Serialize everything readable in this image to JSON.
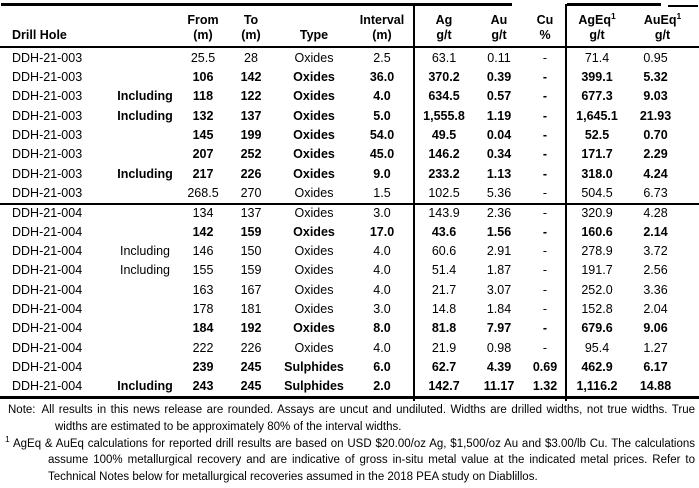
{
  "table": {
    "columns": {
      "drill_hole": "Drill Hole",
      "from": {
        "l1": "From",
        "l2": "(m)"
      },
      "to": {
        "l1": "To",
        "l2": "(m)"
      },
      "type": "Type",
      "interval": {
        "l1": "Interval",
        "l2": "(m)"
      },
      "ag": {
        "l1": "Ag",
        "l2": "g/t"
      },
      "au": {
        "l1": "Au",
        "l2": "g/t"
      },
      "cu": {
        "l1": "Cu",
        "l2": "%"
      },
      "ageq": {
        "l1": "AgEq",
        "sup": "1",
        "l2": "g/t"
      },
      "aueq": {
        "l1": "AuEq",
        "sup": "1",
        "l2": "g/t"
      }
    },
    "rows": [
      {
        "hole": "DDH-21-003",
        "qualifier": "",
        "from": "25.5",
        "to": "28",
        "type": "Oxides",
        "interval": "2.5",
        "ag": "63.1",
        "au": "0.11",
        "cu": "-",
        "ageq": "71.4",
        "aueq": "0.95",
        "bold": false,
        "section_start": false
      },
      {
        "hole": "DDH-21-003",
        "qualifier": "",
        "from": "106",
        "to": "142",
        "type": "Oxides",
        "interval": "36.0",
        "ag": "370.2",
        "au": "0.39",
        "cu": "-",
        "ageq": "399.1",
        "aueq": "5.32",
        "bold": true,
        "section_start": false
      },
      {
        "hole": "DDH-21-003",
        "qualifier": "Including",
        "from": "118",
        "to": "122",
        "type": "Oxides",
        "interval": "4.0",
        "ag": "634.5",
        "au": "0.57",
        "cu": "-",
        "ageq": "677.3",
        "aueq": "9.03",
        "bold": true,
        "section_start": false
      },
      {
        "hole": "DDH-21-003",
        "qualifier": "Including",
        "from": "132",
        "to": "137",
        "type": "Oxides",
        "interval": "5.0",
        "ag": "1,555.8",
        "au": "1.19",
        "cu": "-",
        "ageq": "1,645.1",
        "aueq": "21.93",
        "bold": true,
        "section_start": false
      },
      {
        "hole": "DDH-21-003",
        "qualifier": "",
        "from": "145",
        "to": "199",
        "type": "Oxides",
        "interval": "54.0",
        "ag": "49.5",
        "au": "0.04",
        "cu": "-",
        "ageq": "52.5",
        "aueq": "0.70",
        "bold": true,
        "section_start": false
      },
      {
        "hole": "DDH-21-003",
        "qualifier": "",
        "from": "207",
        "to": "252",
        "type": "Oxides",
        "interval": "45.0",
        "ag": "146.2",
        "au": "0.34",
        "cu": "-",
        "ageq": "171.7",
        "aueq": "2.29",
        "bold": true,
        "section_start": false
      },
      {
        "hole": "DDH-21-003",
        "qualifier": "Including",
        "from": "217",
        "to": "226",
        "type": "Oxides",
        "interval": "9.0",
        "ag": "233.2",
        "au": "1.13",
        "cu": "-",
        "ageq": "318.0",
        "aueq": "4.24",
        "bold": true,
        "section_start": false
      },
      {
        "hole": "DDH-21-003",
        "qualifier": "",
        "from": "268.5",
        "to": "270",
        "type": "Oxides",
        "interval": "1.5",
        "ag": "102.5",
        "au": "5.36",
        "cu": "-",
        "ageq": "504.5",
        "aueq": "6.73",
        "bold": false,
        "section_start": false
      },
      {
        "hole": "DDH-21-004",
        "qualifier": "",
        "from": "134",
        "to": "137",
        "type": "Oxides",
        "interval": "3.0",
        "ag": "143.9",
        "au": "2.36",
        "cu": "-",
        "ageq": "320.9",
        "aueq": "4.28",
        "bold": false,
        "section_start": true
      },
      {
        "hole": "DDH-21-004",
        "qualifier": "",
        "from": "142",
        "to": "159",
        "type": "Oxides",
        "interval": "17.0",
        "ag": "43.6",
        "au": "1.56",
        "cu": "-",
        "ageq": "160.6",
        "aueq": "2.14",
        "bold": true,
        "section_start": false
      },
      {
        "hole": "DDH-21-004",
        "qualifier": "Including",
        "from": "146",
        "to": "150",
        "type": "Oxides",
        "interval": "4.0",
        "ag": "60.6",
        "au": "2.91",
        "cu": "-",
        "ageq": "278.9",
        "aueq": "3.72",
        "bold": false,
        "section_start": false
      },
      {
        "hole": "DDH-21-004",
        "qualifier": "Including",
        "from": "155",
        "to": "159",
        "type": "Oxides",
        "interval": "4.0",
        "ag": "51.4",
        "au": "1.87",
        "cu": "-",
        "ageq": "191.7",
        "aueq": "2.56",
        "bold": false,
        "section_start": false
      },
      {
        "hole": "DDH-21-004",
        "qualifier": "",
        "from": "163",
        "to": "167",
        "type": "Oxides",
        "interval": "4.0",
        "ag": "21.7",
        "au": "3.07",
        "cu": "-",
        "ageq": "252.0",
        "aueq": "3.36",
        "bold": false,
        "section_start": false
      },
      {
        "hole": "DDH-21-004",
        "qualifier": "",
        "from": "178",
        "to": "181",
        "type": "Oxides",
        "interval": "3.0",
        "ag": "14.8",
        "au": "1.84",
        "cu": "-",
        "ageq": "152.8",
        "aueq": "2.04",
        "bold": false,
        "section_start": false
      },
      {
        "hole": "DDH-21-004",
        "qualifier": "",
        "from": "184",
        "to": "192",
        "type": "Oxides",
        "interval": "8.0",
        "ag": "81.8",
        "au": "7.97",
        "cu": "-",
        "ageq": "679.6",
        "aueq": "9.06",
        "bold": true,
        "section_start": false
      },
      {
        "hole": "DDH-21-004",
        "qualifier": "",
        "from": "222",
        "to": "226",
        "type": "Oxides",
        "interval": "4.0",
        "ag": "21.9",
        "au": "0.98",
        "cu": "-",
        "ageq": "95.4",
        "aueq": "1.27",
        "bold": false,
        "section_start": false
      },
      {
        "hole": "DDH-21-004",
        "qualifier": "",
        "from": "239",
        "to": "245",
        "type": "Sulphides",
        "interval": "6.0",
        "ag": "62.7",
        "au": "4.39",
        "cu": "0.69",
        "ageq": "462.9",
        "aueq": "6.17",
        "bold": true,
        "section_start": false
      },
      {
        "hole": "DDH-21-004",
        "qualifier": "Including",
        "from": "243",
        "to": "245",
        "type": "Sulphides",
        "interval": "2.0",
        "ag": "142.7",
        "au": "11.17",
        "cu": "1.32",
        "ageq": "1,116.2",
        "aueq": "14.88",
        "bold": true,
        "section_start": false
      }
    ]
  },
  "notes": {
    "note_label": "Note:",
    "note_text": "All results in this news release are rounded. Assays are uncut and undiluted. Widths are drilled widths, not true widths. True widths are estimated to be approximately 80% of the interval widths.",
    "footnote_sup": "1",
    "footnote_text": "AgEq & AuEq calculations for reported drill results are based on USD $20.00/oz Ag, $1,500/oz Au and $3.00/lb Cu. The calculations assume 100% metallurgical recovery and are indicative of gross in-situ metal value at the indicated metal prices. Refer to Technical Notes below for metallurgical recoveries assumed in the 2018 PEA study on Diablillos."
  },
  "colors": {
    "text": "#000000",
    "border": "#000000",
    "background": "#ffffff"
  }
}
